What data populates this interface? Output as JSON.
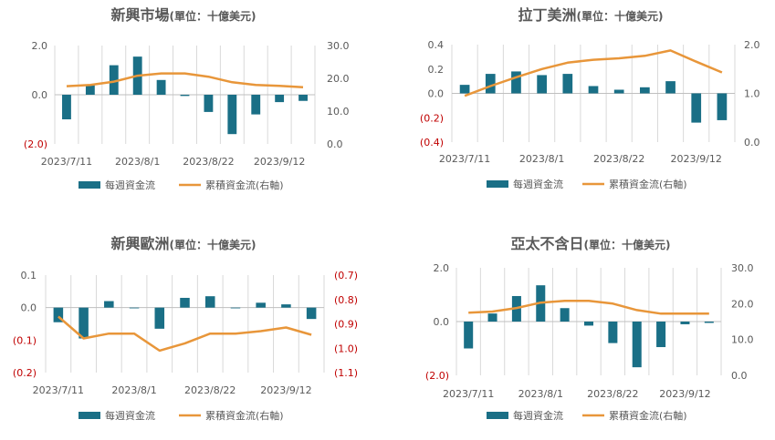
{
  "legend": {
    "bar_label": "每週資金流",
    "line_label": "累積資金流(右軸)"
  },
  "colors": {
    "bar": "#1a6f86",
    "line": "#e8963a",
    "negative_tick": "#c00000",
    "tick": "#595959",
    "grid": "#d9d9d9",
    "title": "#595959"
  },
  "chart_data": [
    {
      "type": "bar",
      "title": "新興市場",
      "title_unit": "(單位：十億美元)",
      "x_ticks": [
        "2023/7/11",
        "2023/8/1",
        "2023/8/22",
        "2023/9/12"
      ],
      "left_ticks": [
        "2.0",
        "0.0",
        "(2.0)"
      ],
      "right_ticks": [
        "30.0",
        "20.0",
        "10.0",
        "0.0"
      ],
      "ylim": [
        -2,
        2
      ],
      "y2lim": [
        0,
        30
      ],
      "series": [
        {
          "name": "每週資金流",
          "type": "bar",
          "axis": "left",
          "values": [
            -1.0,
            0.4,
            1.2,
            1.55,
            0.6,
            -0.05,
            -0.7,
            -1.6,
            -0.8,
            -0.3,
            -0.25
          ]
        },
        {
          "name": "累積資金流(右軸)",
          "type": "line",
          "axis": "right",
          "values": [
            17.6,
            18.0,
            19.0,
            20.8,
            21.5,
            21.5,
            20.5,
            18.8,
            18.0,
            17.7,
            17.3
          ]
        }
      ]
    },
    {
      "type": "bar",
      "title": "拉丁美洲",
      "title_unit": "(單位：十億美元)",
      "x_ticks": [
        "2023/7/11",
        "2023/8/1",
        "2023/8/22",
        "2023/9/12"
      ],
      "left_ticks": [
        "0.4",
        "0.2",
        "0.0",
        "(0.2)",
        "(0.4)"
      ],
      "right_ticks": [
        "2.0",
        "1.0",
        "0.0"
      ],
      "ylim": [
        -0.4,
        0.4
      ],
      "y2lim": [
        0,
        2
      ],
      "series": [
        {
          "name": "每週資金流",
          "type": "bar",
          "axis": "left",
          "values": [
            0.07,
            0.16,
            0.18,
            0.15,
            0.16,
            0.06,
            0.03,
            0.05,
            0.1,
            -0.24,
            -0.22
          ]
        },
        {
          "name": "累積資金流(右軸)",
          "type": "line",
          "axis": "right",
          "values": [
            0.95,
            1.15,
            1.33,
            1.5,
            1.63,
            1.69,
            1.72,
            1.77,
            1.88,
            1.65,
            1.43
          ]
        }
      ]
    },
    {
      "type": "bar",
      "title": "新興歐洲",
      "title_unit": "(單位：十億美元)",
      "x_ticks": [
        "2023/7/11",
        "2023/8/1",
        "2023/8/22",
        "2023/9/12"
      ],
      "left_ticks": [
        "0.1",
        "0.0",
        "(0.1)",
        "(0.2)"
      ],
      "right_ticks": [
        "(0.7)",
        "(0.8)",
        "(0.9)",
        "(1.0)",
        "(1.1)"
      ],
      "ylim": [
        -0.2,
        0.1
      ],
      "y2lim": [
        -1.1,
        -0.7
      ],
      "series": [
        {
          "name": "每週資金流",
          "type": "bar",
          "axis": "left",
          "values": [
            -0.045,
            -0.095,
            0.02,
            0.0,
            -0.065,
            0.03,
            0.035,
            0.0,
            0.015,
            0.01,
            -0.035
          ]
        },
        {
          "name": "累積資金流(右軸)",
          "type": "line",
          "axis": "right",
          "values": [
            -0.87,
            -0.96,
            -0.94,
            -0.94,
            -1.01,
            -0.98,
            -0.94,
            -0.94,
            -0.93,
            -0.915,
            -0.945
          ]
        }
      ]
    },
    {
      "type": "bar",
      "title": "亞太不含日",
      "title_unit": "(單位：十億美元)",
      "x_ticks": [
        "2023/7/11",
        "2023/8/1",
        "2023/8/22",
        "2023/9/12"
      ],
      "left_ticks": [
        "2.0",
        "0.0",
        "(2.0)"
      ],
      "right_ticks": [
        "30.0",
        "20.0",
        "10.0",
        "0.0"
      ],
      "ylim": [
        -2,
        2
      ],
      "y2lim": [
        0,
        30
      ],
      "series": [
        {
          "name": "每週資金流",
          "type": "bar",
          "axis": "left",
          "values": [
            -1.0,
            0.3,
            0.95,
            1.35,
            0.5,
            -0.15,
            -0.8,
            -1.7,
            -0.95,
            -0.1,
            -0.05
          ]
        },
        {
          "name": "累積資金流(右軸)",
          "type": "line",
          "axis": "right",
          "values": [
            17.5,
            17.8,
            18.8,
            20.3,
            20.8,
            20.8,
            20.0,
            18.2,
            17.2,
            17.2,
            17.2
          ]
        }
      ]
    }
  ]
}
